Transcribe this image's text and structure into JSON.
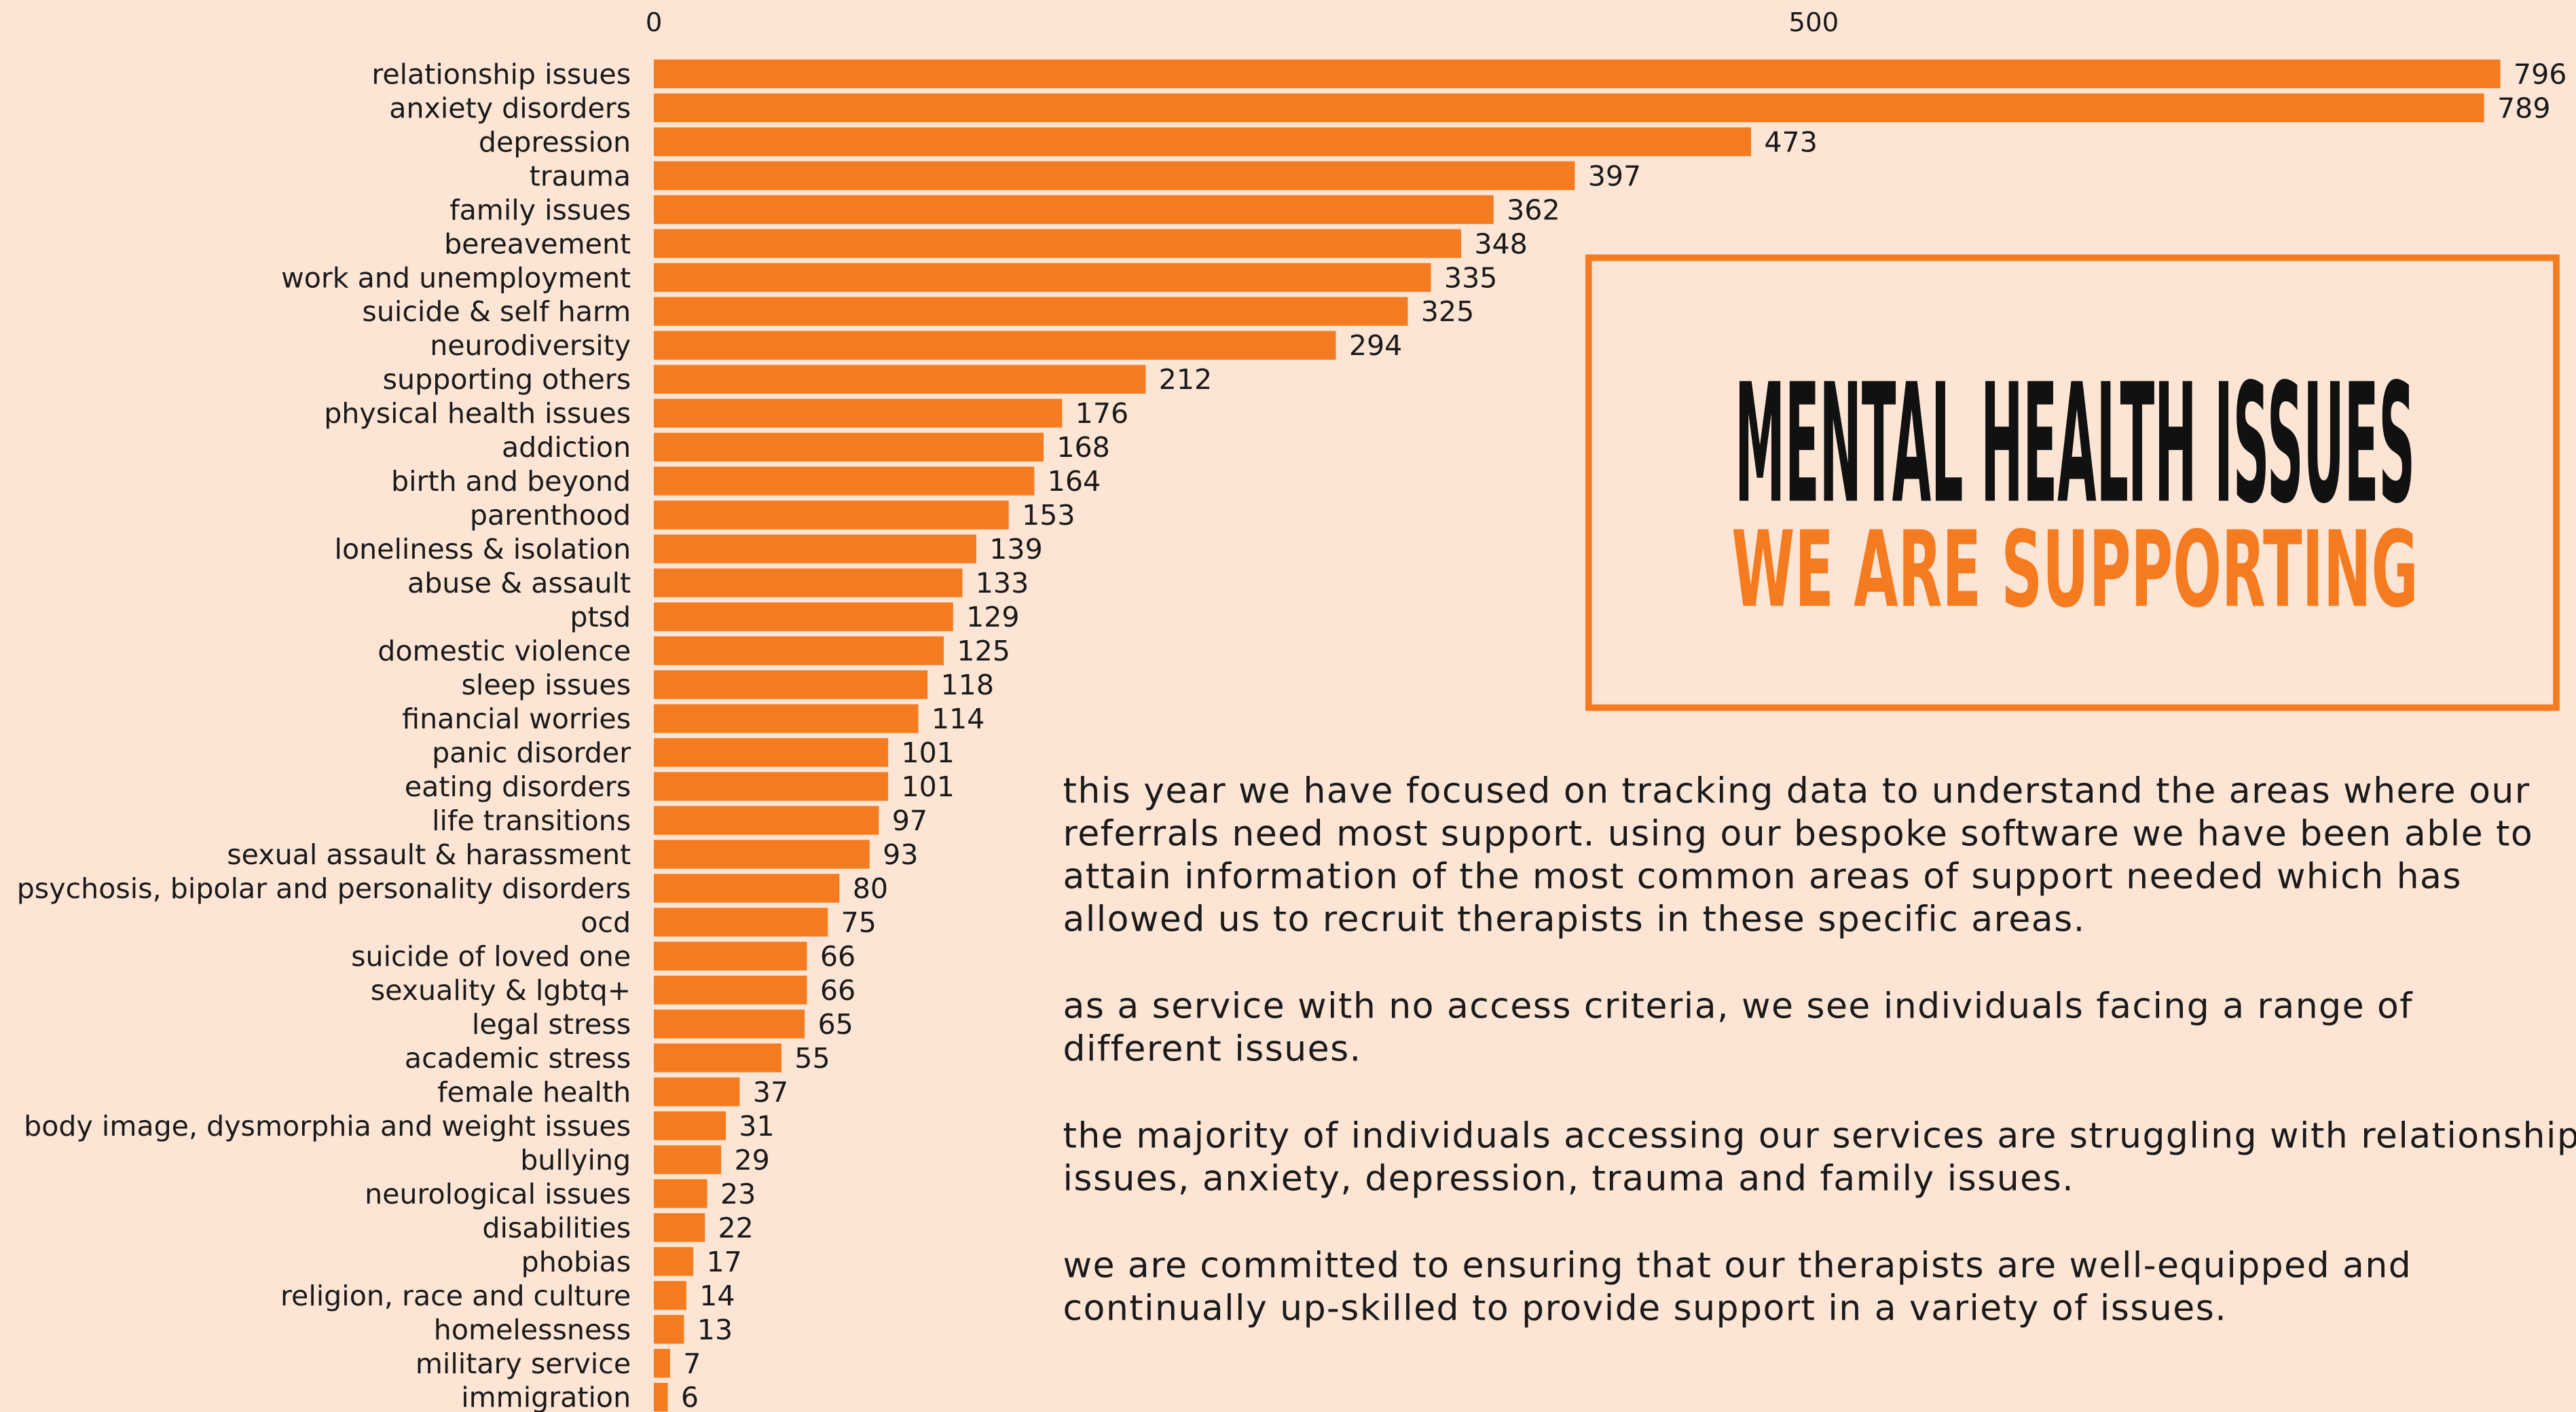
{
  "chart_data": {
    "type": "barh",
    "title": "MENTAL HEALTH ISSUES",
    "subtitle": "WE ARE SUPPORTING",
    "categories": [
      "relationship issues",
      "anxiety disorders",
      "depression",
      "trauma",
      "family issues",
      "bereavement",
      "work and unemployment",
      "suicide & self harm",
      "neurodiversity",
      "supporting others",
      "physical health issues",
      "addiction",
      "birth and beyond",
      "parenthood",
      "loneliness & isolation",
      "abuse & assault",
      "ptsd",
      "domestic violence",
      "sleep issues",
      "financial worries",
      "panic disorder",
      "eating disorders",
      "life transitions",
      "sexual assault & harassment",
      "psychosis, bipolar and personality disorders",
      "ocd",
      "suicide of loved one",
      "sexuality & lgbtq+",
      "legal stress",
      "academic stress",
      "female health",
      "body image, dysmorphia and weight issues",
      "bullying",
      "neurological issues",
      "disabilities",
      "phobias",
      "religion, race and culture",
      "homelessness",
      "military service",
      "immigration"
    ],
    "values": [
      796,
      789,
      473,
      397,
      362,
      348,
      335,
      325,
      294,
      212,
      176,
      168,
      164,
      153,
      139,
      133,
      129,
      125,
      118,
      114,
      101,
      101,
      97,
      93,
      80,
      75,
      66,
      66,
      65,
      55,
      37,
      31,
      29,
      23,
      22,
      17,
      14,
      13,
      7,
      6
    ],
    "color": "#f47b20",
    "xlim": [
      0,
      800
    ],
    "xticks": [
      0,
      500
    ],
    "annotations": [
      [
        "this year we have focused on tracking data to understand the areas where our",
        "referrals need most support. using our bespoke software we have been able to",
        "attain information of the most common areas of support needed which has",
        "allowed us to recruit therapists in these specific areas."
      ],
      [
        "as a service with no access criteria, we see individuals facing a range of",
        "different issues."
      ],
      [
        "the majority of individuals accessing our services are struggling with relationship",
        "issues, anxiety, depression, trauma and family issues."
      ],
      [
        "we are committed to ensuring that our therapists are well-equipped and",
        "continually up-skilled to provide support in a variety of issues."
      ]
    ]
  }
}
